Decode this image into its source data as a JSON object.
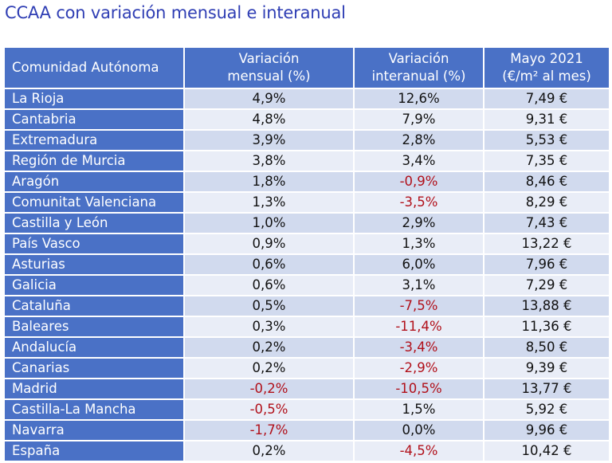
{
  "title": "CCAA con variación mensual e interanual",
  "table": {
    "headers": {
      "region": "Comunidad Autónoma",
      "monthly": [
        "Variación",
        "mensual (%)"
      ],
      "yearly": [
        "Variación",
        "interanual (%)"
      ],
      "price": [
        "Mayo 2021",
        "(€/m² al mes)"
      ]
    },
    "rows": [
      {
        "region": "La Rioja",
        "monthly": "4,9%",
        "yearly": "12,6%",
        "price": "7,49 €"
      },
      {
        "region": "Cantabria",
        "monthly": "4,8%",
        "yearly": "7,9%",
        "price": "9,31 €"
      },
      {
        "region": "Extremadura",
        "monthly": "3,9%",
        "yearly": "2,8%",
        "price": "5,53 €"
      },
      {
        "region": "Región de Murcia",
        "monthly": "3,8%",
        "yearly": "3,4%",
        "price": "7,35 €"
      },
      {
        "region": "Aragón",
        "monthly": "1,8%",
        "yearly": "-0,9%",
        "price": "8,46 €"
      },
      {
        "region": "Comunitat Valenciana",
        "monthly": "1,3%",
        "yearly": "-3,5%",
        "price": "8,29 €"
      },
      {
        "region": "Castilla y León",
        "monthly": "1,0%",
        "yearly": "2,9%",
        "price": "7,43 €"
      },
      {
        "region": "País Vasco",
        "monthly": "0,9%",
        "yearly": "1,3%",
        "price": "13,22 €"
      },
      {
        "region": "Asturias",
        "monthly": "0,6%",
        "yearly": "6,0%",
        "price": "7,96 €"
      },
      {
        "region": "Galicia",
        "monthly": "0,6%",
        "yearly": "3,1%",
        "price": "7,29 €"
      },
      {
        "region": "Cataluña",
        "monthly": "0,5%",
        "yearly": "-7,5%",
        "price": "13,88 €"
      },
      {
        "region": "Baleares",
        "monthly": "0,3%",
        "yearly": "-11,4%",
        "price": "11,36 €"
      },
      {
        "region": "Andalucía",
        "monthly": "0,2%",
        "yearly": "-3,4%",
        "price": "8,50 €"
      },
      {
        "region": "Canarias",
        "monthly": "0,2%",
        "yearly": "-2,9%",
        "price": "9,39 €"
      },
      {
        "region": "Madrid",
        "monthly": "-0,2%",
        "yearly": "-10,5%",
        "price": "13,77 €"
      },
      {
        "region": "Castilla-La Mancha",
        "monthly": "-0,5%",
        "yearly": "1,5%",
        "price": "5,92 €"
      },
      {
        "region": "Navarra",
        "monthly": "-1,7%",
        "yearly": "0,0%",
        "price": "9,96 €"
      },
      {
        "region": "España",
        "monthly": "0,2%",
        "yearly": "-4,5%",
        "price": "10,42 €"
      }
    ]
  },
  "colors": {
    "title": "#2f3eb4",
    "header_bg": "#4a71c6",
    "row_odd": "#d1daee",
    "row_even": "#e9edf7",
    "negative": "#b1101a"
  }
}
